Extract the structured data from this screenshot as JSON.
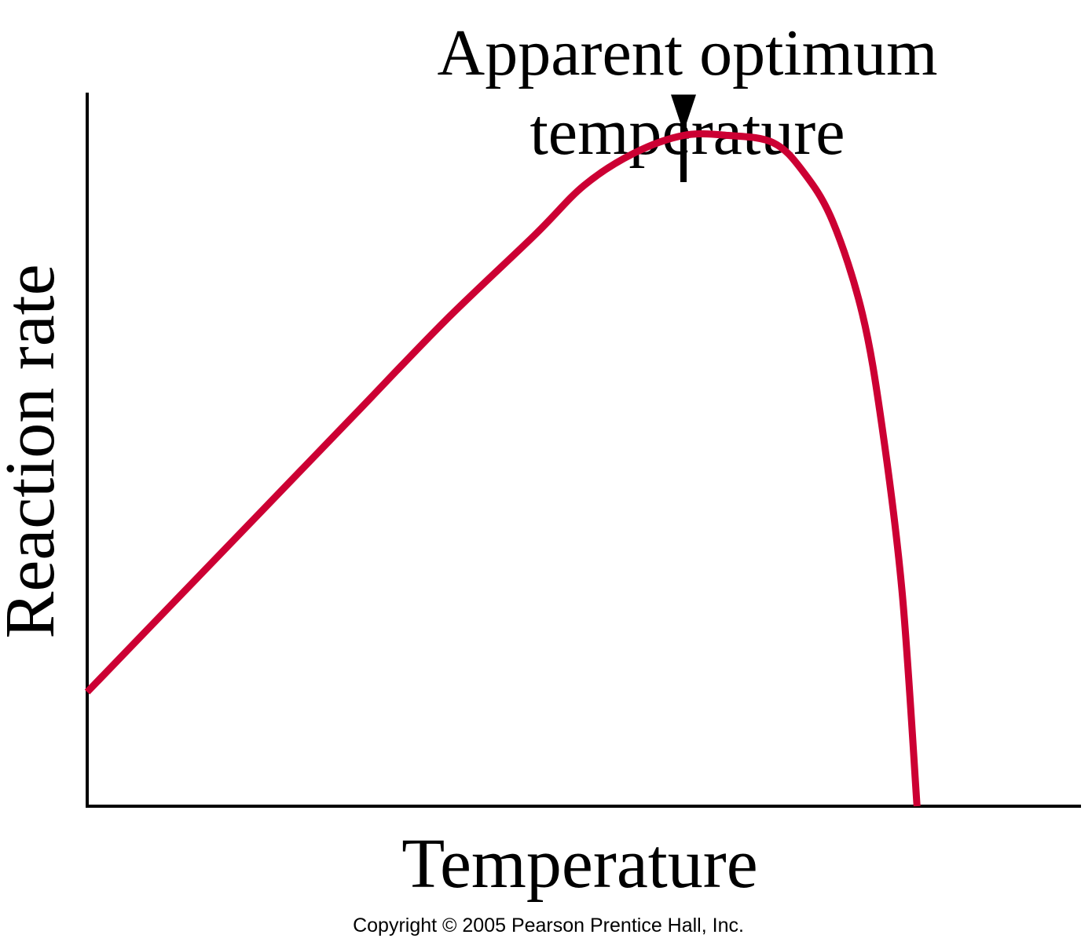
{
  "chart_data": {
    "type": "line",
    "title": "",
    "xlabel": "Temperature",
    "ylabel": "Reaction rate",
    "ylim": [
      0,
      1
    ],
    "xlim": [
      0,
      1
    ],
    "grid": false,
    "series": [
      {
        "color": "#CC0033",
        "x": [
          0,
          0.09,
          0.18,
          0.27,
          0.36,
          0.45,
          0.5,
          0.55,
          0.6,
          0.645,
          0.69,
          0.72,
          0.75,
          0.78,
          0.8,
          0.82,
          0.835
        ],
        "y": [
          0.16,
          0.29,
          0.42,
          0.55,
          0.68,
          0.8,
          0.87,
          0.915,
          0.94,
          0.94,
          0.93,
          0.89,
          0.82,
          0.69,
          0.53,
          0.3,
          0
        ]
      }
    ],
    "annotations": [
      {
        "text_line1": "Apparent optimum",
        "text_line2": "temperature",
        "points_to_x": 0.6
      }
    ],
    "footer": "Copyright © 2005 Pearson Prentice Hall, Inc."
  }
}
